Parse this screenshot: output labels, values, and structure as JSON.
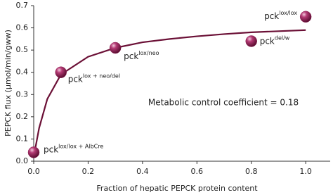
{
  "chart_data": {
    "type": "scatter",
    "x_label": "Fraction of hepatic PEPCK protein content",
    "y_label": "PEPCK flux (µmol/min/gww)",
    "annotation": "Metabolic control coefficient = 0.18",
    "x": [
      0,
      0.1,
      0.3,
      0.8,
      1.0
    ],
    "values": [
      0.04,
      0.4,
      0.51,
      0.54,
      0.65
    ],
    "point_labels": [
      {
        "base": "pck",
        "sup": "lox/lox + AlbCre"
      },
      {
        "base": "pck",
        "sup": "lox + neo/del"
      },
      {
        "base": "pck",
        "sup": "lox/neo"
      },
      {
        "base": "pck",
        "sup": "del/w"
      },
      {
        "base": "pck",
        "sup": "lox/lox"
      }
    ],
    "color": "#8e1d52",
    "curve": {
      "color": "#6b1036",
      "x": [
        0,
        0.02,
        0.05,
        0.1,
        0.2,
        0.3,
        0.4,
        0.5,
        0.6,
        0.7,
        0.8,
        0.9,
        1.0
      ],
      "values": [
        0.02,
        0.15,
        0.28,
        0.39,
        0.47,
        0.51,
        0.535,
        0.55,
        0.562,
        0.572,
        0.58,
        0.585,
        0.59
      ]
    },
    "xlim": [
      0,
      1.09
    ],
    "ylim": [
      0,
      0.7
    ],
    "xticks": [
      {
        "value": 0,
        "label": "0.0"
      },
      0.2,
      0.4,
      0.6,
      0.8,
      {
        "value": 1,
        "label": "1.0"
      }
    ],
    "yticks": [
      {
        "value": 0,
        "label": "0.0"
      },
      0.1,
      0.2,
      0.3,
      0.4,
      0.5,
      0.6,
      0.7
    ]
  }
}
